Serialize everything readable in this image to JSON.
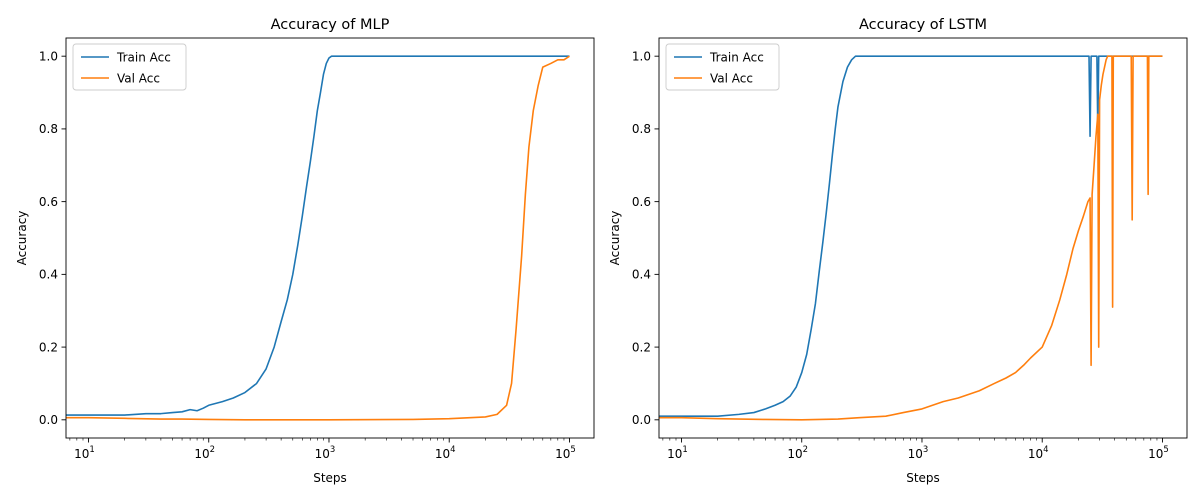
{
  "figure": {
    "background": "#ffffff"
  },
  "chart_data": [
    {
      "type": "line",
      "title": "Accuracy of MLP",
      "xlabel": "Steps",
      "ylabel": "Accuracy",
      "xscale": "log",
      "xlim": [
        6.5,
        160000
      ],
      "ylim": [
        -0.05,
        1.05
      ],
      "xticks": [
        {
          "value": 10,
          "base": "10",
          "exp": "1"
        },
        {
          "value": 100,
          "base": "10",
          "exp": "2"
        },
        {
          "value": 1000,
          "base": "10",
          "exp": "3"
        },
        {
          "value": 10000,
          "base": "10",
          "exp": "4"
        },
        {
          "value": 100000,
          "base": "10",
          "exp": "5"
        }
      ],
      "yticks": [
        {
          "value": 0.0,
          "label": "0.0"
        },
        {
          "value": 0.2,
          "label": "0.2"
        },
        {
          "value": 0.4,
          "label": "0.4"
        },
        {
          "value": 0.6,
          "label": "0.6"
        },
        {
          "value": 0.8,
          "label": "0.8"
        },
        {
          "value": 1.0,
          "label": "1.0"
        }
      ],
      "legend": "top-left",
      "grid": false,
      "series": [
        {
          "name": "Train Acc",
          "color": "#1f77b4",
          "x": [
            6.5,
            10,
            20,
            30,
            40,
            50,
            60,
            70,
            80,
            90,
            100,
            130,
            160,
            200,
            250,
            300,
            350,
            400,
            450,
            500,
            550,
            600,
            650,
            700,
            750,
            800,
            850,
            900,
            950,
            1000,
            1050,
            1100,
            1200,
            2000,
            5000,
            10000,
            20000,
            50000,
            100000
          ],
          "y": [
            0.013,
            0.013,
            0.013,
            0.017,
            0.017,
            0.02,
            0.022,
            0.028,
            0.025,
            0.032,
            0.04,
            0.05,
            0.06,
            0.075,
            0.1,
            0.14,
            0.2,
            0.27,
            0.33,
            0.4,
            0.48,
            0.56,
            0.64,
            0.71,
            0.78,
            0.85,
            0.9,
            0.95,
            0.98,
            0.995,
            1.0,
            1.0,
            1.0,
            1.0,
            1.0,
            1.0,
            1.0,
            1.0,
            1.0
          ]
        },
        {
          "name": "Val Acc",
          "color": "#ff7f0e",
          "x": [
            6.5,
            10,
            20,
            40,
            60,
            100,
            200,
            1000,
            5000,
            10000,
            20000,
            25000,
            30000,
            33000,
            36000,
            40000,
            43000,
            46000,
            50000,
            55000,
            60000,
            70000,
            80000,
            90000,
            100000
          ],
          "y": [
            0.006,
            0.006,
            0.004,
            0.002,
            0.002,
            0.001,
            0.0,
            0.0,
            0.001,
            0.003,
            0.008,
            0.015,
            0.04,
            0.1,
            0.25,
            0.45,
            0.62,
            0.75,
            0.85,
            0.92,
            0.97,
            0.98,
            0.99,
            0.99,
            1.0
          ]
        }
      ]
    },
    {
      "type": "line",
      "title": "Accuracy of LSTM",
      "xlabel": "Steps",
      "ylabel": "Accuracy",
      "xscale": "log",
      "xlim": [
        6.5,
        160000
      ],
      "ylim": [
        -0.05,
        1.05
      ],
      "xticks": [
        {
          "value": 10,
          "base": "10",
          "exp": "1"
        },
        {
          "value": 100,
          "base": "10",
          "exp": "2"
        },
        {
          "value": 1000,
          "base": "10",
          "exp": "3"
        },
        {
          "value": 10000,
          "base": "10",
          "exp": "4"
        },
        {
          "value": 100000,
          "base": "10",
          "exp": "5"
        }
      ],
      "yticks": [
        {
          "value": 0.0,
          "label": "0.0"
        },
        {
          "value": 0.2,
          "label": "0.2"
        },
        {
          "value": 0.4,
          "label": "0.4"
        },
        {
          "value": 0.6,
          "label": "0.6"
        },
        {
          "value": 0.8,
          "label": "0.8"
        },
        {
          "value": 1.0,
          "label": "1.0"
        }
      ],
      "legend": "top-left",
      "grid": false,
      "series": [
        {
          "name": "Train Acc",
          "color": "#1f77b4",
          "x": [
            6.5,
            10,
            20,
            30,
            40,
            50,
            60,
            70,
            80,
            90,
            100,
            110,
            120,
            130,
            140,
            150,
            160,
            170,
            180,
            190,
            200,
            220,
            240,
            260,
            280,
            300,
            350,
            1000,
            10000,
            24500,
            25000,
            25500,
            28500,
            29000,
            29500,
            100000
          ],
          "y": [
            0.01,
            0.01,
            0.01,
            0.015,
            0.02,
            0.03,
            0.04,
            0.05,
            0.065,
            0.09,
            0.13,
            0.18,
            0.25,
            0.32,
            0.41,
            0.49,
            0.57,
            0.65,
            0.73,
            0.8,
            0.86,
            0.93,
            0.97,
            0.99,
            1.0,
            1.0,
            1.0,
            1.0,
            1.0,
            1.0,
            0.78,
            1.0,
            1.0,
            0.79,
            1.0,
            1.0
          ]
        },
        {
          "name": "Val Acc",
          "color": "#ff7f0e",
          "x": [
            6.5,
            10,
            20,
            50,
            100,
            200,
            300,
            500,
            700,
            1000,
            1500,
            2000,
            3000,
            4000,
            5000,
            6000,
            7000,
            8000,
            10000,
            12000,
            14000,
            16000,
            18000,
            20000,
            22000,
            24000,
            25000,
            25500,
            26000,
            27000,
            28000,
            29000,
            29500,
            30000,
            31000,
            32000,
            33000,
            34000,
            35000,
            37000,
            38000,
            38500,
            39000,
            40000,
            45000,
            50000,
            55000,
            56000,
            57000,
            60000,
            70000,
            75000,
            76000,
            77000,
            100000
          ],
          "y": [
            0.006,
            0.006,
            0.003,
            0.001,
            0.0,
            0.002,
            0.006,
            0.01,
            0.02,
            0.03,
            0.05,
            0.06,
            0.08,
            0.1,
            0.115,
            0.13,
            0.15,
            0.17,
            0.2,
            0.26,
            0.33,
            0.4,
            0.47,
            0.52,
            0.56,
            0.6,
            0.61,
            0.15,
            0.62,
            0.7,
            0.78,
            0.84,
            0.2,
            0.88,
            0.92,
            0.95,
            0.97,
            0.99,
            1.0,
            1.0,
            1.0,
            0.31,
            1.0,
            1.0,
            1.0,
            1.0,
            1.0,
            0.55,
            1.0,
            1.0,
            1.0,
            1.0,
            0.62,
            1.0,
            1.0
          ]
        }
      ]
    }
  ]
}
